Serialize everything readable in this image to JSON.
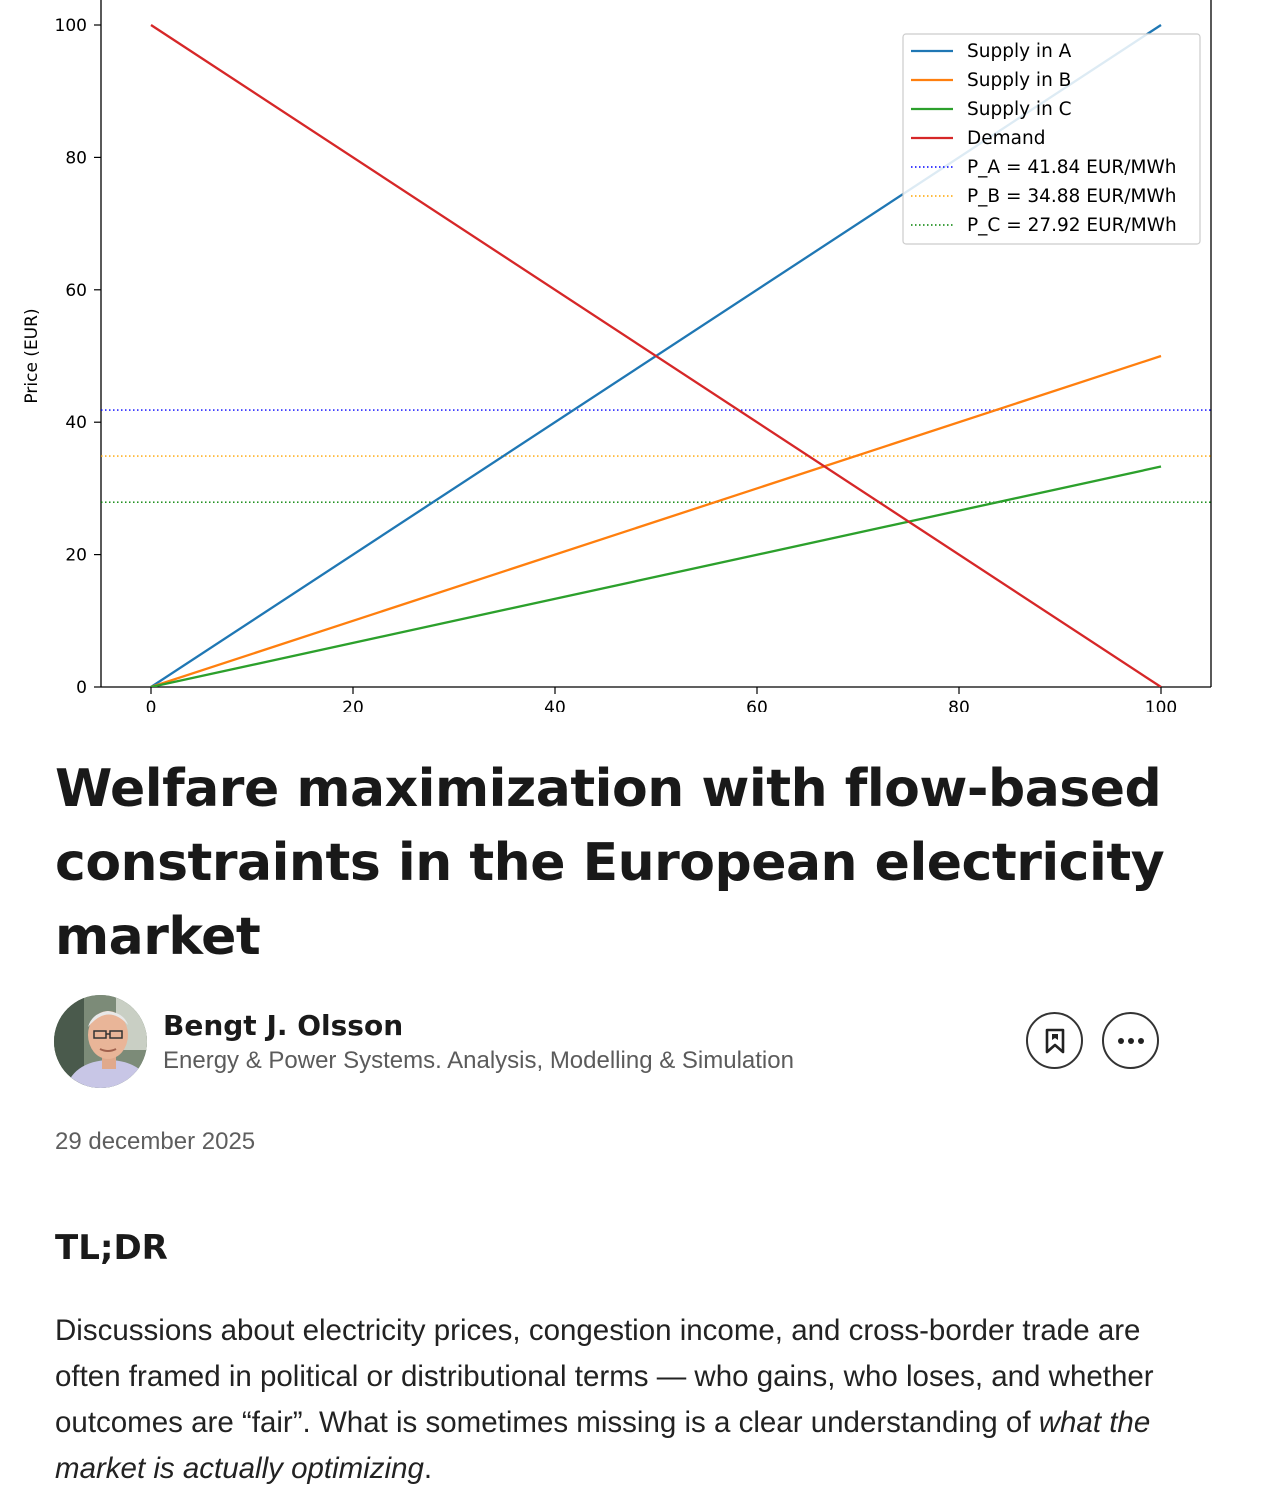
{
  "chart_data": {
    "type": "line",
    "ylabel": "Price (EUR)",
    "xlabel": "",
    "xlim": [
      -5,
      105
    ],
    "ylim": [
      0,
      100
    ],
    "xticks": [
      "0",
      "20",
      "40",
      "60",
      "80",
      "100"
    ],
    "yticks": [
      "0",
      "20",
      "40",
      "60",
      "80",
      "100"
    ],
    "legend_position": "top-right",
    "series": [
      {
        "name": "Supply in A",
        "color": "#1f77b4",
        "style": "solid",
        "x": [
          0,
          100
        ],
        "y": [
          0,
          100
        ]
      },
      {
        "name": "Supply in B",
        "color": "#ff7f0e",
        "style": "solid",
        "x": [
          0,
          100
        ],
        "y": [
          0,
          50
        ]
      },
      {
        "name": "Supply in C",
        "color": "#2ca02c",
        "style": "solid",
        "x": [
          0,
          100
        ],
        "y": [
          0,
          33.3
        ]
      },
      {
        "name": "Demand",
        "color": "#d62728",
        "style": "solid",
        "x": [
          0,
          100
        ],
        "y": [
          100,
          0
        ]
      }
    ],
    "hlines": [
      {
        "name": "P_A = 41.84 EUR/MWh",
        "y": 41.84,
        "color": "#0000ff"
      },
      {
        "name": "P_B = 34.88 EUR/MWh",
        "y": 34.88,
        "color": "#ffa500"
      },
      {
        "name": "P_C = 27.92 EUR/MWh",
        "y": 27.92,
        "color": "#008000"
      }
    ]
  },
  "article": {
    "title": "Welfare maximization with flow-based constraints in the European electricity market",
    "author_name": "Bengt J. Olsson",
    "author_bio": "Energy & Power Systems. Analysis, Modelling & Simulation",
    "date": "29 december 2025",
    "section_heading": "TL;DR",
    "paragraph_part1": "Discussions about electricity prices, congestion income, and cross-border trade are often framed in political or distributional terms — who gains, who loses, and whether outcomes are “fair”. What is sometimes missing is a clear understanding of ",
    "paragraph_emphasis": "what the market is actually optimizing",
    "paragraph_part2": "."
  },
  "actions": {
    "bookmark_icon": "bookmark-icon",
    "more_icon": "more-options-icon"
  }
}
